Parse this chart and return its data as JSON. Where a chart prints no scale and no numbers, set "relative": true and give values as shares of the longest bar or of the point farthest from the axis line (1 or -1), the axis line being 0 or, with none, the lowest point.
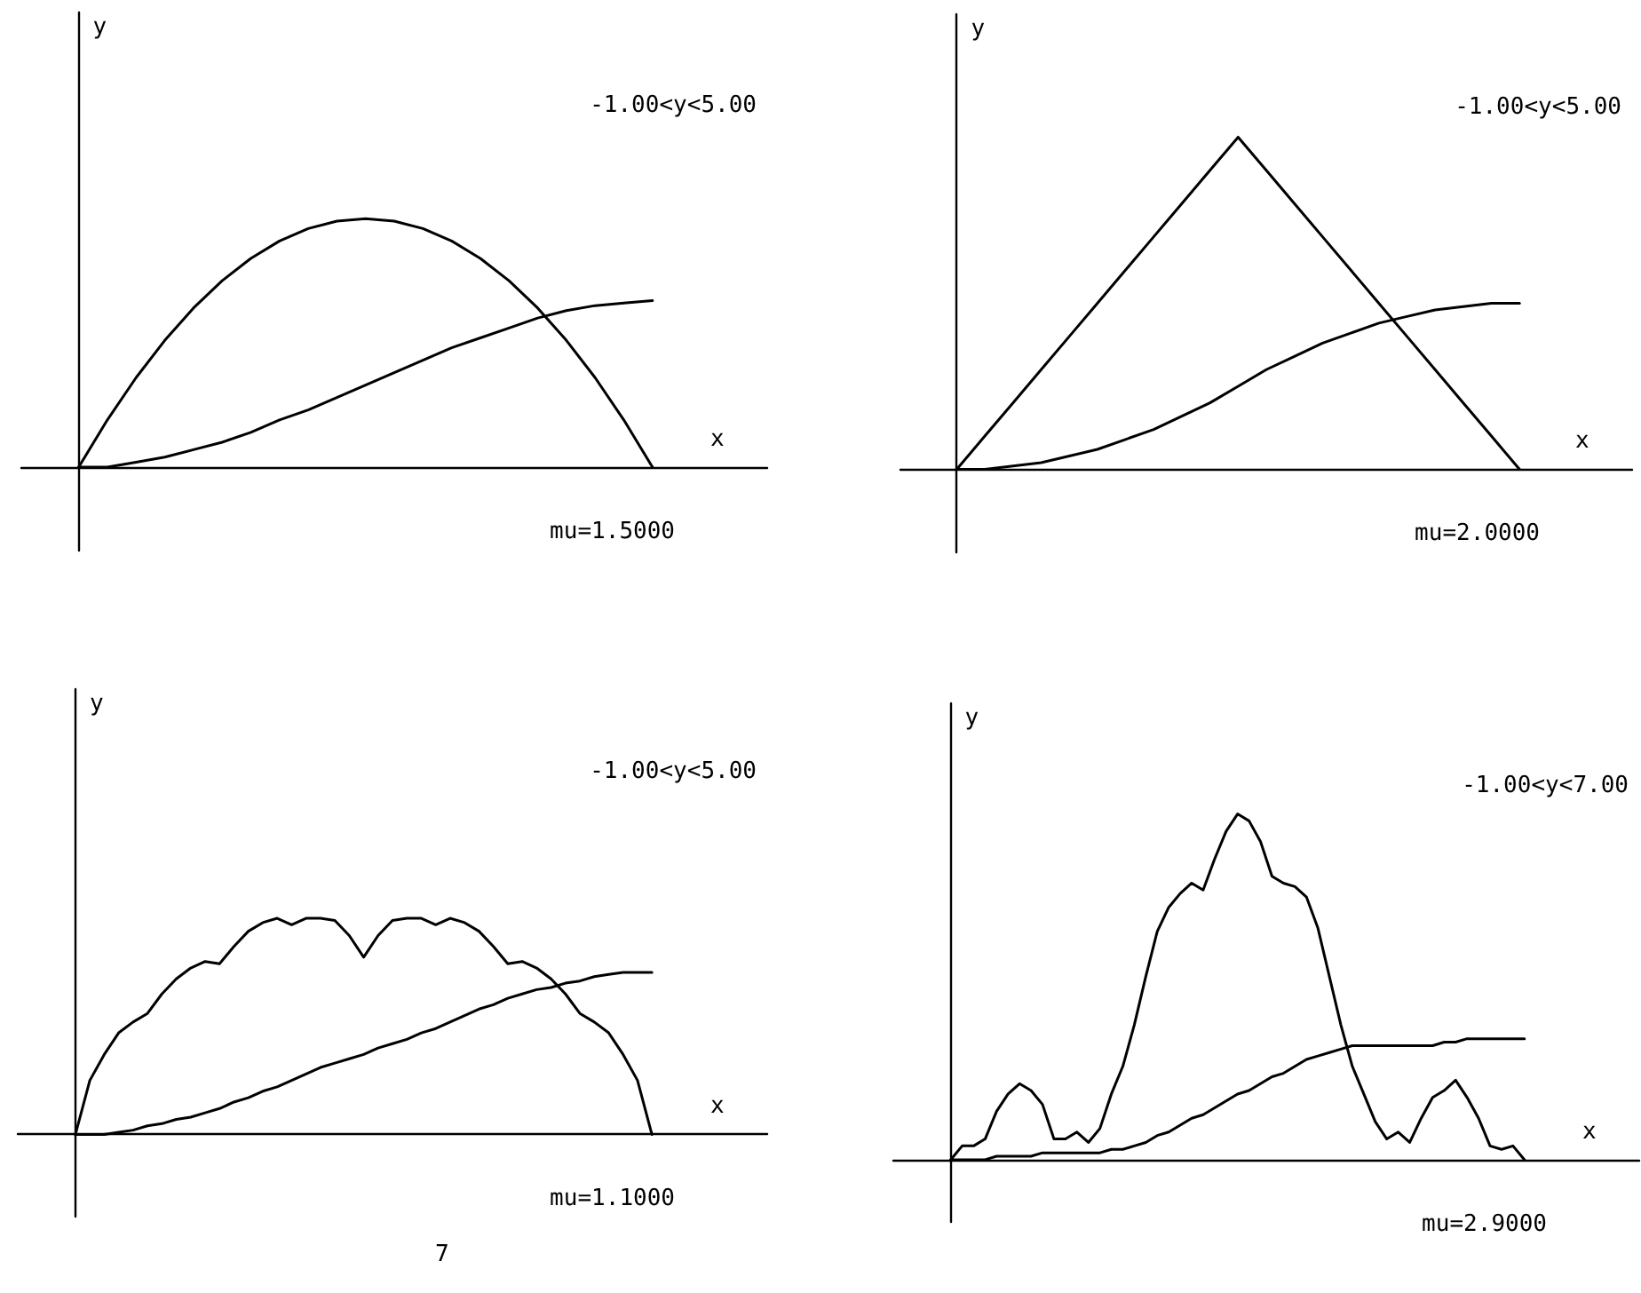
{
  "chart_data": [
    {
      "type": "line",
      "xlabel": "x",
      "ylabel": "y",
      "annotations": [
        "-1.00<y<5.00",
        "mu=1.5000"
      ],
      "categories": [
        null,
        null,
        null,
        null,
        null,
        null,
        null,
        null,
        null,
        null,
        null,
        null,
        null,
        null,
        null,
        null,
        null,
        null,
        null,
        null,
        null,
        null,
        null,
        null,
        null,
        null,
        null
      ],
      "relative": true,
      "tick_labels": false,
      "marker": "none",
      "line_style": "solid",
      "series": [
        {
          "color": "#000000",
          "values": [
            null,
            null,
            0,
            0.19,
            0.36,
            0.51,
            0.64,
            0.75,
            0.84,
            0.91,
            0.96,
            0.99,
            1,
            0.99,
            0.96,
            0.91,
            0.84,
            0.75,
            0.64,
            0.51,
            0.36,
            0.19,
            0,
            null,
            null,
            null,
            null
          ]
        },
        {
          "color": "#000000",
          "values": [
            null,
            null,
            0,
            0,
            0.02,
            0.04,
            0.07,
            0.1,
            0.14,
            0.19,
            0.23,
            0.28,
            0.33,
            0.38,
            0.43,
            0.48,
            0.52,
            0.56,
            0.6,
            0.63,
            0.65,
            0.66,
            0.67,
            null,
            null,
            null,
            null
          ]
        }
      ]
    },
    {
      "type": "line",
      "xlabel": "x",
      "ylabel": "y",
      "annotations": [
        "-1.00<y<5.00",
        "mu=2.0000"
      ],
      "categories": [
        null,
        null,
        null,
        null,
        null,
        null,
        null,
        null,
        null,
        null,
        null,
        null,
        null,
        null,
        null,
        null,
        null,
        null,
        null,
        null,
        null,
        null,
        null,
        null,
        null,
        null,
        null
      ],
      "relative": true,
      "tick_labels": false,
      "marker": "none",
      "line_style": "solid",
      "series": [
        {
          "color": "#000000",
          "values": [
            null,
            null,
            0,
            0.1,
            0.2,
            0.3,
            0.4,
            0.5,
            0.6,
            0.7,
            0.8,
            0.9,
            1,
            0.9,
            0.8,
            0.7,
            0.6,
            0.5,
            0.4,
            0.3,
            0.2,
            0.1,
            0,
            null,
            null,
            null,
            null
          ]
        },
        {
          "color": "#000000",
          "values": [
            null,
            null,
            0,
            0,
            0.01,
            0.02,
            0.04,
            0.06,
            0.09,
            0.12,
            0.16,
            0.2,
            0.25,
            0.3,
            0.34,
            0.38,
            0.41,
            0.44,
            0.46,
            0.48,
            0.49,
            0.5,
            0.5,
            null,
            null,
            null,
            null
          ]
        }
      ]
    },
    {
      "type": "line",
      "xlabel": "x",
      "ylabel": "y",
      "annotations": [
        "-1.00<y<5.00",
        "mu=1.1000",
        "7"
      ],
      "categories": [
        null,
        null,
        null,
        null,
        null,
        null,
        null,
        null,
        null,
        null,
        null,
        null,
        null,
        null,
        null,
        null,
        null,
        null,
        null,
        null,
        null,
        null,
        null,
        null,
        null,
        null,
        null,
        null,
        null,
        null,
        null,
        null,
        null,
        null,
        null,
        null,
        null,
        null,
        null,
        null,
        null,
        null,
        null,
        null,
        null,
        null,
        null,
        null,
        null,
        null,
        null,
        null,
        null
      ],
      "relative": true,
      "tick_labels": false,
      "marker": "none",
      "line_style": "solid",
      "series": [
        {
          "color": "#000000",
          "values": [
            null,
            null,
            null,
            null,
            0,
            0.25,
            0.37,
            0.47,
            0.52,
            0.56,
            0.65,
            0.72,
            0.77,
            0.8,
            0.79,
            0.87,
            0.94,
            0.98,
            1,
            0.97,
            1,
            1,
            0.99,
            0.92,
            0.82,
            0.92,
            0.99,
            1,
            1,
            0.97,
            1,
            0.98,
            0.94,
            0.87,
            0.79,
            0.8,
            0.77,
            0.72,
            0.65,
            0.56,
            0.52,
            0.47,
            0.37,
            0.25,
            0,
            null,
            null,
            null,
            null,
            null,
            null,
            null,
            null
          ]
        },
        {
          "color": "#000000",
          "values": [
            null,
            null,
            null,
            null,
            0,
            0,
            0,
            0.01,
            0.02,
            0.04,
            0.05,
            0.07,
            0.08,
            0.1,
            0.12,
            0.15,
            0.17,
            0.2,
            0.22,
            0.25,
            0.28,
            0.31,
            0.33,
            0.35,
            0.37,
            0.4,
            0.42,
            0.44,
            0.47,
            0.49,
            0.52,
            0.55,
            0.58,
            0.6,
            0.63,
            0.65,
            0.67,
            0.68,
            0.7,
            0.71,
            0.73,
            0.74,
            0.75,
            0.75,
            0.75,
            null,
            null,
            null,
            null,
            null,
            null,
            null,
            null
          ]
        }
      ]
    },
    {
      "type": "line",
      "xlabel": "x",
      "ylabel": "y",
      "annotations": [
        "-1.00<y<7.00",
        "mu=2.9000"
      ],
      "categories": [
        null,
        null,
        null,
        null,
        null,
        null,
        null,
        null,
        null,
        null,
        null,
        null,
        null,
        null,
        null,
        null,
        null,
        null,
        null,
        null,
        null,
        null,
        null,
        null,
        null,
        null,
        null,
        null,
        null,
        null,
        null,
        null,
        null,
        null,
        null,
        null,
        null,
        null,
        null,
        null,
        null,
        null,
        null,
        null,
        null,
        null,
        null,
        null,
        null,
        null,
        null,
        null,
        null,
        null,
        null,
        null,
        null,
        null,
        null,
        null,
        null,
        null,
        null,
        null,
        null,
        null
      ],
      "relative": true,
      "tick_labels": false,
      "marker": "none",
      "line_style": "solid",
      "series": [
        {
          "color": "#000000",
          "values": [
            null,
            null,
            null,
            null,
            null,
            0,
            0.04,
            0.04,
            0.06,
            0.14,
            0.19,
            0.22,
            0.2,
            0.16,
            0.06,
            0.06,
            0.08,
            0.05,
            0.09,
            0.19,
            0.27,
            0.39,
            0.53,
            0.66,
            0.73,
            0.77,
            0.8,
            0.78,
            0.87,
            0.95,
            1,
            0.98,
            0.92,
            0.82,
            0.8,
            0.79,
            0.76,
            0.67,
            0.53,
            0.39,
            0.27,
            0.19,
            0.11,
            0.06,
            0.08,
            0.05,
            0.12,
            0.18,
            0.2,
            0.23,
            0.18,
            0.12,
            0.04,
            0.03,
            0.04,
            0,
            null,
            null,
            null,
            null,
            null,
            null,
            null,
            null,
            null,
            null
          ]
        },
        {
          "color": "#000000",
          "values": [
            null,
            null,
            null,
            null,
            null,
            0,
            0,
            0,
            0,
            0.01,
            0.01,
            0.01,
            0.01,
            0.02,
            0.02,
            0.02,
            0.02,
            0.02,
            0.02,
            0.03,
            0.03,
            0.04,
            0.05,
            0.07,
            0.08,
            0.1,
            0.12,
            0.13,
            0.15,
            0.17,
            0.19,
            0.2,
            0.22,
            0.24,
            0.25,
            0.27,
            0.29,
            0.3,
            0.31,
            0.32,
            0.33,
            0.33,
            0.33,
            0.33,
            0.33,
            0.33,
            0.33,
            0.33,
            0.34,
            0.34,
            0.35,
            0.35,
            0.35,
            0.35,
            0.35,
            0.35,
            null,
            null,
            null,
            null,
            null,
            null,
            null,
            null,
            null,
            null
          ]
        }
      ]
    }
  ]
}
